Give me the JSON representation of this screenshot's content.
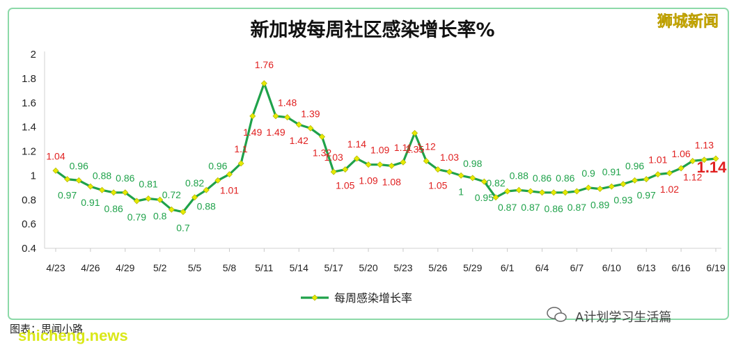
{
  "brand": "狮城新闻",
  "credit": "图表：思闻小路",
  "watermark": "A计划学习生活篇",
  "site_watermark": "shicheng.news",
  "colors": {
    "line": "#1fa24a",
    "marker": "#e6ea00",
    "label_above_one": "#e02020",
    "label_below_one": "#1fa24a",
    "frame": "#8cd9a8"
  },
  "chart_data": {
    "type": "line",
    "title": "新加坡每周社区感染增长率%",
    "xlabel": "",
    "ylabel": "",
    "ylim": [
      0.4,
      2
    ],
    "yticks": [
      "2",
      "1.8",
      "1.6",
      "1.4",
      "1.2",
      "1",
      "0.8",
      "0.6",
      "0.4"
    ],
    "grid": false,
    "legend_position": "bottom-center",
    "x_tick_labels": [
      "4/23",
      "4/26",
      "4/29",
      "5/2",
      "5/5",
      "5/8",
      "5/11",
      "5/14",
      "5/17",
      "5/20",
      "5/23",
      "5/26",
      "5/29",
      "6/1",
      "6/4",
      "6/7",
      "6/10",
      "6/13",
      "6/16",
      "6/19"
    ],
    "series": [
      {
        "name": "每周感染增长率",
        "labels": [
          "1.04",
          "0.97",
          "0.96",
          "0.91",
          "0.88",
          "0.86",
          "0.86",
          "0.79",
          "0.81",
          "0.8",
          "0.72",
          "0.7",
          "0.82",
          "0.88",
          "0.96",
          "1.01",
          "1.1",
          "1.49",
          "1.76",
          "1.49",
          "1.48",
          "1.42",
          "1.39",
          "1.32",
          "1.03",
          "1.05",
          "1.14",
          "1.09",
          "1.09",
          "1.08",
          "1.11",
          "1.35",
          "1.12",
          "1.05",
          "1.03",
          "1",
          "0.98",
          "0.95",
          "0.82",
          "0.87",
          "0.88",
          "0.87",
          "0.86",
          "0.86",
          "0.86",
          "0.87",
          "0.9",
          "0.89",
          "0.91",
          "0.93",
          "0.96",
          "0.97",
          "1.01",
          "1.02",
          "1.06",
          "1.12",
          "1.13",
          "1.14"
        ],
        "values": [
          1.04,
          0.97,
          0.96,
          0.91,
          0.88,
          0.86,
          0.86,
          0.79,
          0.81,
          0.8,
          0.72,
          0.7,
          0.82,
          0.88,
          0.96,
          1.01,
          1.1,
          1.49,
          1.76,
          1.49,
          1.48,
          1.42,
          1.39,
          1.32,
          1.03,
          1.05,
          1.14,
          1.09,
          1.09,
          1.08,
          1.11,
          1.35,
          1.12,
          1.05,
          1.03,
          1.0,
          0.98,
          0.95,
          0.82,
          0.87,
          0.88,
          0.87,
          0.86,
          0.86,
          0.86,
          0.87,
          0.9,
          0.89,
          0.91,
          0.93,
          0.96,
          0.97,
          1.01,
          1.02,
          1.06,
          1.12,
          1.13,
          1.14
        ]
      }
    ]
  }
}
